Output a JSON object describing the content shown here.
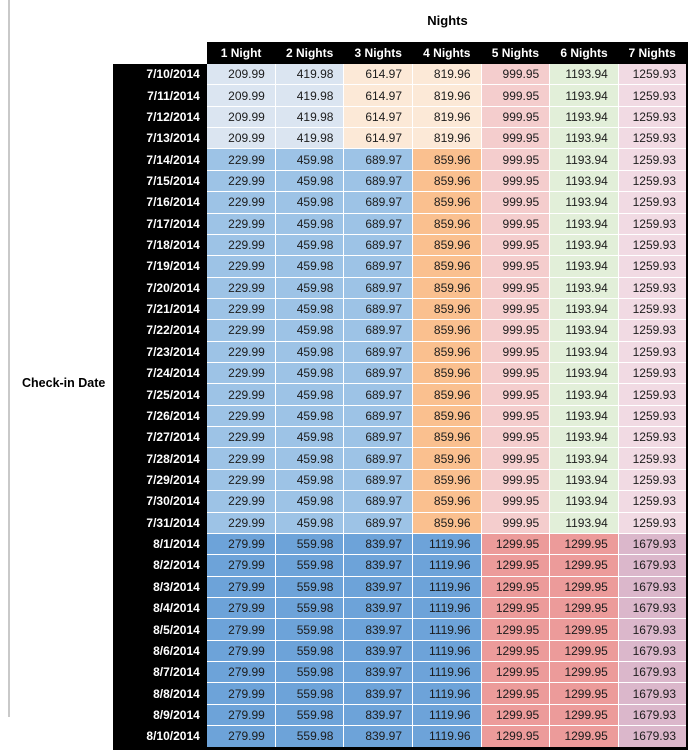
{
  "table": {
    "title": "Nights",
    "row_axis_label": "Check-in Date",
    "column_headers": [
      "1 Night",
      "2 Nights",
      "3 Nights",
      "4 Nights",
      "5 Nights",
      "6 Nights",
      "7 Nights"
    ],
    "header_bg": "#000000",
    "header_text": "#ffffff",
    "palette": {
      "blue_light": "#dbe5f1",
      "orange_light": "#fce9d7",
      "blue_medium": "#9dc3e6",
      "orange": "#fac08f",
      "pink": "#f4cdcd",
      "green_light": "#e2efd9",
      "pink_lavender": "#f1dae3",
      "blue_dark": "#6da3d9",
      "salmon": "#ec9b9a",
      "mauve": "#dbb7cb"
    },
    "sections": [
      {
        "dates": [
          "7/10/2014",
          "7/11/2014",
          "7/12/2014",
          "7/13/2014"
        ],
        "values": [
          "209.99",
          "419.98",
          "614.97",
          "819.96",
          "999.95",
          "1193.94",
          "1259.93"
        ],
        "colors": [
          "blue_light",
          "blue_light",
          "orange_light",
          "orange_light",
          "pink",
          "green_light",
          "pink_lavender"
        ]
      },
      {
        "dates": [
          "7/14/2014",
          "7/15/2014",
          "7/16/2014",
          "7/17/2014",
          "7/18/2014",
          "7/19/2014",
          "7/20/2014",
          "7/21/2014",
          "7/22/2014",
          "7/23/2014",
          "7/24/2014",
          "7/25/2014",
          "7/26/2014",
          "7/27/2014",
          "7/28/2014",
          "7/29/2014",
          "7/30/2014",
          "7/31/2014"
        ],
        "values": [
          "229.99",
          "459.98",
          "689.97",
          "859.96",
          "999.95",
          "1193.94",
          "1259.93"
        ],
        "colors": [
          "blue_medium",
          "blue_medium",
          "blue_medium",
          "orange",
          "pink",
          "green_light",
          "pink_lavender"
        ]
      },
      {
        "dates": [
          "8/1/2014",
          "8/2/2014",
          "8/3/2014",
          "8/4/2014",
          "8/5/2014",
          "8/6/2014",
          "8/7/2014",
          "8/8/2014",
          "8/9/2014",
          "8/10/2014"
        ],
        "values": [
          "279.99",
          "559.98",
          "839.97",
          "1119.96",
          "1299.95",
          "1299.95",
          "1679.93"
        ],
        "colors": [
          "blue_dark",
          "blue_dark",
          "blue_dark",
          "blue_dark",
          "salmon",
          "salmon",
          "mauve"
        ]
      }
    ]
  }
}
